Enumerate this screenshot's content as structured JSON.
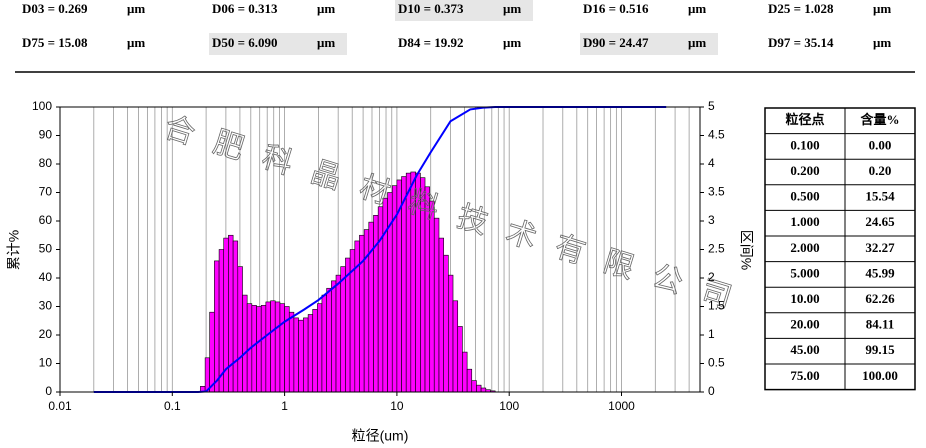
{
  "stats": [
    {
      "text": "D03 = 0.269",
      "unit": "μm",
      "highlight": false
    },
    {
      "text": "D06 = 0.313",
      "unit": "μm",
      "highlight": false
    },
    {
      "text": "D10 = 0.373",
      "unit": "μm",
      "highlight": true
    },
    {
      "text": "D16 = 0.516",
      "unit": "μm",
      "highlight": false
    },
    {
      "text": "D25 = 1.028",
      "unit": "μm",
      "highlight": false
    },
    {
      "text": "D75 = 15.08",
      "unit": "μm",
      "highlight": false
    },
    {
      "text": "D50 = 6.090",
      "unit": "μm",
      "highlight": true
    },
    {
      "text": "D84 = 19.92",
      "unit": "μm",
      "highlight": false
    },
    {
      "text": "D90 = 24.47",
      "unit": "μm",
      "highlight": true
    },
    {
      "text": "D97 = 35.14",
      "unit": "μm",
      "highlight": false
    }
  ],
  "chart_data": {
    "type": "histogram",
    "xlabel": "粒径(um)",
    "ylabel": "累计%",
    "y2label": "区间%",
    "xscale": "log",
    "xlim": [
      0.01,
      5000
    ],
    "xticks": [
      0.01,
      0.1,
      1,
      10,
      100,
      1000
    ],
    "ylim": [
      0,
      100
    ],
    "yticks": [
      0,
      10,
      20,
      30,
      40,
      50,
      60,
      70,
      80,
      90,
      100
    ],
    "y2lim": [
      0,
      5
    ],
    "y2ticks": [
      0,
      0.5,
      1,
      1.5,
      2,
      2.5,
      3,
      3.5,
      4,
      4.5,
      5
    ],
    "grid": "x",
    "series": [
      {
        "type": "histogram",
        "axis": "y2",
        "color": "#ff00ff",
        "bins": [
          0.178,
          0.196,
          0.215,
          0.237,
          0.261,
          0.287,
          0.316,
          0.348,
          0.383,
          0.422,
          0.464,
          0.511,
          0.562,
          0.619,
          0.681,
          0.75,
          0.825,
          0.909,
          1.0,
          1.1,
          1.21,
          1.33,
          1.47,
          1.62,
          1.78,
          1.96,
          2.15,
          2.37,
          2.61,
          2.87,
          3.16,
          3.48,
          3.83,
          4.22,
          4.64,
          5.11,
          5.62,
          6.19,
          6.81,
          7.5,
          8.25,
          9.09,
          10.0,
          11.0,
          12.1,
          13.3,
          14.7,
          16.2,
          17.8,
          19.6,
          21.5,
          23.7,
          26.1,
          28.7,
          31.6,
          34.8,
          38.3,
          42.2,
          46.4,
          51.1,
          56.2,
          61.9,
          68.1,
          75.0
        ],
        "values": [
          0.1,
          0.6,
          1.4,
          2.3,
          2.5,
          2.7,
          2.75,
          2.65,
          2.2,
          1.7,
          1.55,
          1.52,
          1.5,
          1.52,
          1.58,
          1.6,
          1.58,
          1.55,
          1.5,
          1.4,
          1.3,
          1.26,
          1.3,
          1.36,
          1.45,
          1.55,
          1.7,
          1.82,
          1.95,
          2.05,
          2.2,
          2.35,
          2.5,
          2.65,
          2.75,
          2.85,
          2.98,
          3.1,
          3.25,
          3.4,
          3.5,
          3.62,
          3.72,
          3.78,
          3.84,
          3.86,
          3.84,
          3.76,
          3.6,
          3.35,
          3.05,
          2.7,
          2.4,
          2.05,
          1.6,
          1.15,
          0.7,
          0.4,
          0.2,
          0.12,
          0.07,
          0.04,
          0.02
        ]
      },
      {
        "type": "line",
        "axis": "y",
        "color": "#0000ff",
        "x": [
          0.02,
          0.1,
          0.17,
          0.2,
          0.25,
          0.3,
          0.4,
          0.5,
          0.7,
          1,
          1.5,
          2,
          3,
          5,
          7,
          10,
          15,
          20,
          30,
          45,
          60,
          75,
          100,
          1000,
          2500
        ],
        "values": [
          0,
          0,
          0,
          0.2,
          4,
          8,
          12,
          15.54,
          20,
          24.65,
          29,
          32.27,
          38,
          45.99,
          53,
          62.26,
          76,
          84.11,
          95,
          99.15,
          99.8,
          100,
          100,
          100,
          100
        ]
      }
    ]
  },
  "watermark": "合肥科晶材料技术有限公司",
  "table": {
    "header": [
      "粒径点",
      "含量%"
    ],
    "rows": [
      [
        "0.100",
        "0.00"
      ],
      [
        "0.200",
        "0.20"
      ],
      [
        "0.500",
        "15.54"
      ],
      [
        "1.000",
        "24.65"
      ],
      [
        "2.000",
        "32.27"
      ],
      [
        "5.000",
        "45.99"
      ],
      [
        "10.00",
        "62.26"
      ],
      [
        "20.00",
        "84.11"
      ],
      [
        "45.00",
        "99.15"
      ],
      [
        "75.00",
        "100.00"
      ]
    ]
  }
}
